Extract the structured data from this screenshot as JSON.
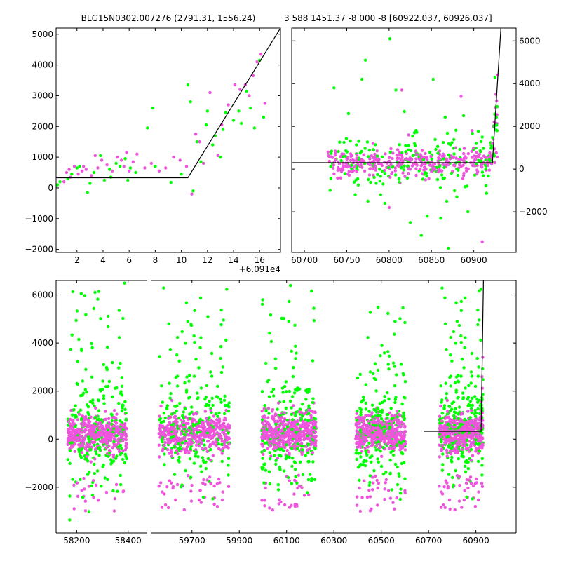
{
  "colors": {
    "green": "#00ff00",
    "magenta": "#ee55dd",
    "line": "#000000",
    "axes": "#000000"
  },
  "chart_data": [
    {
      "id": "top-left",
      "type": "scatter",
      "title": "BLG15N0302.007276 (2791.31, 1556.24)",
      "xlim": [
        0.4,
        17.6
      ],
      "ylim": [
        -2100,
        5200
      ],
      "xticks": [
        2,
        4,
        6,
        8,
        10,
        12,
        14,
        16
      ],
      "yticks": [
        -2000,
        -1000,
        0,
        1000,
        2000,
        3000,
        4000,
        5000
      ],
      "offset_label": "+6.091e4",
      "model": {
        "x": [
          0.4,
          10.5,
          17.6
        ],
        "y": [
          330,
          330,
          5200
        ]
      },
      "series": [
        {
          "name": "green",
          "x": [
            0.5,
            0.7,
            1.3,
            1.6,
            2.0,
            2.2,
            2.8,
            3.0,
            3.3,
            3.8,
            4.1,
            4.5,
            4.6,
            5.0,
            5.3,
            5.7,
            5.9,
            6.1,
            6.5,
            7.4,
            7.8,
            8.0,
            9.2,
            10.0,
            10.5,
            10.7,
            10.9,
            11.2,
            11.5,
            11.9,
            12.0,
            12.4,
            12.6,
            13.0,
            13.2,
            13.4,
            14.0,
            14.4,
            14.6,
            15.0,
            15.3,
            15.6,
            16.0,
            16.3
          ],
          "y": [
            100,
            200,
            300,
            450,
            650,
            700,
            -150,
            150,
            500,
            1050,
            250,
            600,
            350,
            800,
            700,
            950,
            250,
            650,
            500,
            1950,
            2600,
            700,
            180,
            450,
            3350,
            2800,
            -100,
            1500,
            850,
            2050,
            2500,
            1400,
            1700,
            1000,
            1900,
            2450,
            2200,
            2500,
            2100,
            3150,
            2600,
            1950,
            4150,
            2300
          ]
        },
        {
          "name": "magenta",
          "x": [
            1.0,
            1.2,
            1.4,
            1.5,
            1.8,
            2.1,
            2.4,
            2.5,
            2.7,
            3.1,
            3.4,
            3.6,
            3.9,
            4.3,
            4.7,
            5.1,
            5.4,
            5.6,
            5.8,
            6.0,
            6.3,
            6.6,
            7.2,
            7.7,
            8.3,
            8.8,
            9.4,
            9.9,
            10.4,
            10.8,
            11.1,
            11.4,
            11.7,
            12.2,
            12.8,
            13.1,
            13.6,
            14.1,
            14.5,
            14.9,
            15.2,
            15.5,
            15.8,
            16.1,
            16.4
          ],
          "y": [
            200,
            500,
            600,
            350,
            700,
            450,
            550,
            700,
            600,
            400,
            1050,
            650,
            900,
            750,
            550,
            1000,
            900,
            700,
            1150,
            550,
            850,
            1100,
            650,
            800,
            550,
            650,
            1000,
            900,
            700,
            -200,
            1750,
            1500,
            800,
            3100,
            1050,
            2050,
            2700,
            3350,
            3200,
            3350,
            3000,
            3650,
            4100,
            4350,
            2750
          ]
        }
      ]
    },
    {
      "id": "top-right",
      "type": "scatter",
      "title": "3 588 1451.37 -8.000 -8 [60922.037, 60926.037]",
      "xlim": [
        60685,
        60950
      ],
      "ylim": [
        -3900,
        6600
      ],
      "xticks": [
        60700,
        60750,
        60800,
        60850,
        60900
      ],
      "yticks": [
        -2000,
        0,
        2000,
        4000,
        6000
      ],
      "yaxis_side": "right",
      "model": {
        "x": [
          60685,
          60922,
          60932
        ],
        "y": [
          300,
          300,
          6600
        ]
      },
      "series": [
        {
          "name": "green",
          "x": [
            60735,
            60752,
            60768,
            60772,
            60775,
            60790,
            60801,
            60808,
            60812,
            60818,
            60825,
            60838,
            60845,
            60852,
            60861,
            60870,
            60880,
            60893,
            60910,
            60925,
            60760,
            60795,
            60830,
            60868,
            60888
          ],
          "y": [
            3800,
            2600,
            4200,
            5100,
            -1500,
            -1200,
            6100,
            3700,
            -600,
            2700,
            -2500,
            -3100,
            -2200,
            4200,
            -2300,
            -3700,
            -1300,
            -2000,
            1500,
            4300,
            -1200,
            -1600,
            1700,
            -1500,
            2500
          ]
        },
        {
          "name": "magenta",
          "x": [
            60728,
            60755,
            60781,
            60800,
            60815,
            60823,
            60843,
            60864,
            60885,
            60898,
            60910,
            60924,
            60926,
            60928
          ],
          "y": [
            800,
            600,
            1200,
            -1800,
            3700,
            1600,
            -500,
            700,
            3400,
            1800,
            -3400,
            2200,
            3500,
            4400
          ]
        }
      ]
    },
    {
      "id": "bottom",
      "type": "scatter",
      "xlim_segments": [
        [
          58120,
          58480
        ],
        [
          59520,
          61070
        ]
      ],
      "ylim": [
        -3900,
        6600
      ],
      "xticks": [
        58200,
        58400,
        59700,
        59900,
        60100,
        60300,
        60500,
        60700,
        60900
      ],
      "yticks": [
        -2000,
        0,
        2000,
        4000,
        6000
      ],
      "model": {
        "x": [
          60680,
          60922,
          60932
        ],
        "y": [
          330,
          330,
          6600
        ]
      },
      "clusters": [
        {
          "segment": 0,
          "x0": 58165,
          "x1": 58395
        },
        {
          "segment": 1,
          "x0": 59560,
          "x1": 59860
        },
        {
          "segment": 1,
          "x0": 59995,
          "x1": 60225
        },
        {
          "segment": 1,
          "x0": 60392,
          "x1": 60602
        },
        {
          "segment": 1,
          "x0": 60745,
          "x1": 60930
        }
      ]
    }
  ]
}
